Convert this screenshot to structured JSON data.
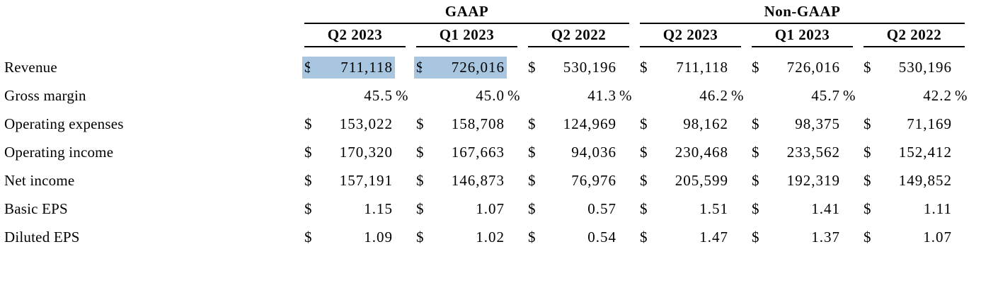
{
  "page": {
    "background_color": "#ffffff",
    "text_color": "#000000",
    "rule_color": "#000000",
    "highlight_color": "#a9c6e0"
  },
  "table": {
    "groups": [
      {
        "label": "GAAP",
        "columns": [
          "Q2 2023",
          "Q1 2023",
          "Q2 2022"
        ]
      },
      {
        "label": "Non-GAAP",
        "columns": [
          "Q2 2023",
          "Q1 2023",
          "Q2 2022"
        ]
      }
    ],
    "rows": [
      {
        "label": "Revenue",
        "cells": [
          {
            "cur": "$",
            "num": "711,118",
            "suffix": "",
            "highlight": true
          },
          {
            "cur": "$",
            "num": "726,016",
            "suffix": "",
            "highlight": true
          },
          {
            "cur": "$",
            "num": "530,196",
            "suffix": "",
            "highlight": false
          },
          {
            "cur": "$",
            "num": "711,118",
            "suffix": "",
            "highlight": false
          },
          {
            "cur": "$",
            "num": "726,016",
            "suffix": "",
            "highlight": false
          },
          {
            "cur": "$",
            "num": "530,196",
            "suffix": "",
            "highlight": false
          }
        ]
      },
      {
        "label": "Gross margin",
        "cells": [
          {
            "cur": "",
            "num": "45.5",
            "suffix": "%",
            "highlight": false
          },
          {
            "cur": "",
            "num": "45.0",
            "suffix": "%",
            "highlight": false
          },
          {
            "cur": "",
            "num": "41.3",
            "suffix": "%",
            "highlight": false
          },
          {
            "cur": "",
            "num": "46.2",
            "suffix": "%",
            "highlight": false
          },
          {
            "cur": "",
            "num": "45.7",
            "suffix": "%",
            "highlight": false
          },
          {
            "cur": "",
            "num": "42.2",
            "suffix": "%",
            "highlight": false
          }
        ]
      },
      {
        "label": "Operating expenses",
        "cells": [
          {
            "cur": "$",
            "num": "153,022",
            "suffix": "",
            "highlight": false
          },
          {
            "cur": "$",
            "num": "158,708",
            "suffix": "",
            "highlight": false
          },
          {
            "cur": "$",
            "num": "124,969",
            "suffix": "",
            "highlight": false
          },
          {
            "cur": "$",
            "num": "98,162",
            "suffix": "",
            "highlight": false
          },
          {
            "cur": "$",
            "num": "98,375",
            "suffix": "",
            "highlight": false
          },
          {
            "cur": "$",
            "num": "71,169",
            "suffix": "",
            "highlight": false
          }
        ]
      },
      {
        "label": "Operating income",
        "cells": [
          {
            "cur": "$",
            "num": "170,320",
            "suffix": "",
            "highlight": false
          },
          {
            "cur": "$",
            "num": "167,663",
            "suffix": "",
            "highlight": false
          },
          {
            "cur": "$",
            "num": "94,036",
            "suffix": "",
            "highlight": false
          },
          {
            "cur": "$",
            "num": "230,468",
            "suffix": "",
            "highlight": false
          },
          {
            "cur": "$",
            "num": "233,562",
            "suffix": "",
            "highlight": false
          },
          {
            "cur": "$",
            "num": "152,412",
            "suffix": "",
            "highlight": false
          }
        ]
      },
      {
        "label": "Net income",
        "cells": [
          {
            "cur": "$",
            "num": "157,191",
            "suffix": "",
            "highlight": false
          },
          {
            "cur": "$",
            "num": "146,873",
            "suffix": "",
            "highlight": false
          },
          {
            "cur": "$",
            "num": "76,976",
            "suffix": "",
            "highlight": false
          },
          {
            "cur": "$",
            "num": "205,599",
            "suffix": "",
            "highlight": false
          },
          {
            "cur": "$",
            "num": "192,319",
            "suffix": "",
            "highlight": false
          },
          {
            "cur": "$",
            "num": "149,852",
            "suffix": "",
            "highlight": false
          }
        ]
      },
      {
        "label": "Basic EPS",
        "cells": [
          {
            "cur": "$",
            "num": "1.15",
            "suffix": "",
            "highlight": false
          },
          {
            "cur": "$",
            "num": "1.07",
            "suffix": "",
            "highlight": false
          },
          {
            "cur": "$",
            "num": "0.57",
            "suffix": "",
            "highlight": false
          },
          {
            "cur": "$",
            "num": "1.51",
            "suffix": "",
            "highlight": false
          },
          {
            "cur": "$",
            "num": "1.41",
            "suffix": "",
            "highlight": false
          },
          {
            "cur": "$",
            "num": "1.11",
            "suffix": "",
            "highlight": false
          }
        ]
      },
      {
        "label": "Diluted EPS",
        "cells": [
          {
            "cur": "$",
            "num": "1.09",
            "suffix": "",
            "highlight": false
          },
          {
            "cur": "$",
            "num": "1.02",
            "suffix": "",
            "highlight": false
          },
          {
            "cur": "$",
            "num": "0.54",
            "suffix": "",
            "highlight": false
          },
          {
            "cur": "$",
            "num": "1.47",
            "suffix": "",
            "highlight": false
          },
          {
            "cur": "$",
            "num": "1.37",
            "suffix": "",
            "highlight": false
          },
          {
            "cur": "$",
            "num": "1.07",
            "suffix": "",
            "highlight": false
          }
        ]
      }
    ]
  }
}
